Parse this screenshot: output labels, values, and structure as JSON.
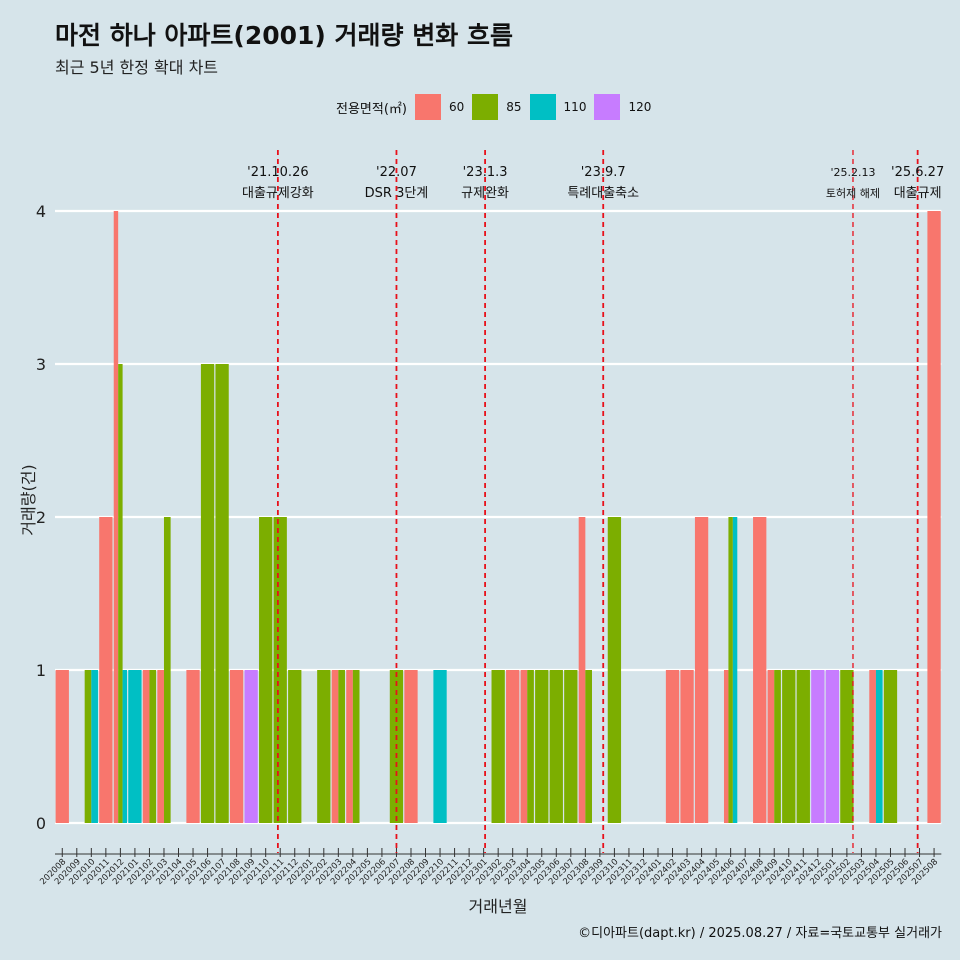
{
  "title": "마전 하나 아파트(2001) 거래량 변화 흐름",
  "subtitle": "최근 5년 한정 확대 차트",
  "caption": "©디아파트(dapt.kr) / 2025.08.27 / 자료=국토교통부 실거래가",
  "legend": {
    "title": "전용면적(㎡)",
    "items": [
      {
        "label": "60",
        "color": "#f8766d"
      },
      {
        "label": "85",
        "color": "#7cae00"
      },
      {
        "label": "110",
        "color": "#00bfc4"
      },
      {
        "label": "120",
        "color": "#c77cff"
      }
    ]
  },
  "chart_data": {
    "type": "bar",
    "xlabel": "거래년월",
    "ylabel": "거래량(건)",
    "ylim": [
      0,
      4
    ],
    "yticks": [
      "0",
      "1",
      "2",
      "3",
      "4"
    ],
    "categories": [
      "202008",
      "202009",
      "202010",
      "202011",
      "202012",
      "202101",
      "202102",
      "202103",
      "202104",
      "202105",
      "202106",
      "202107",
      "202108",
      "202109",
      "202110",
      "202111",
      "202112",
      "202201",
      "202202",
      "202203",
      "202204",
      "202205",
      "202206",
      "202207",
      "202208",
      "202209",
      "202210",
      "202211",
      "202212",
      "202301",
      "202302",
      "202303",
      "202304",
      "202305",
      "202306",
      "202307",
      "202308",
      "202309",
      "202310",
      "202311",
      "202312",
      "202401",
      "202402",
      "202403",
      "202404",
      "202405",
      "202406",
      "202407",
      "202408",
      "202409",
      "202410",
      "202411",
      "202412",
      "202501",
      "202502",
      "202503",
      "202504",
      "202505",
      "202506",
      "202507",
      "202508"
    ],
    "series": [
      {
        "name": "60",
        "color": "#f8766d",
        "values": [
          1,
          0,
          0,
          2,
          4,
          0,
          1,
          1,
          0,
          1,
          0,
          0,
          1,
          0,
          0,
          0,
          0,
          0,
          0,
          1,
          1,
          0,
          0,
          0,
          1,
          0,
          0,
          0,
          0,
          0,
          0,
          1,
          1,
          0,
          0,
          0,
          2,
          0,
          0,
          0,
          0,
          0,
          1,
          1,
          2,
          0,
          1,
          0,
          2,
          1,
          0,
          0,
          0,
          0,
          0,
          0,
          1,
          0,
          0,
          0,
          4
        ]
      },
      {
        "name": "85",
        "color": "#7cae00",
        "values": [
          0,
          0,
          1,
          0,
          3,
          0,
          1,
          2,
          0,
          0,
          3,
          3,
          0,
          0,
          2,
          2,
          1,
          0,
          1,
          1,
          1,
          0,
          0,
          1,
          0,
          0,
          0,
          0,
          0,
          0,
          1,
          0,
          1,
          1,
          1,
          1,
          1,
          0,
          2,
          0,
          0,
          0,
          0,
          0,
          0,
          0,
          2,
          0,
          0,
          1,
          1,
          1,
          0,
          0,
          1,
          0,
          0,
          1,
          0,
          0,
          0
        ]
      },
      {
        "name": "110",
        "color": "#00bfc4",
        "values": [
          0,
          0,
          1,
          0,
          1,
          1,
          0,
          0,
          0,
          0,
          0,
          0,
          0,
          0,
          0,
          0,
          0,
          0,
          0,
          0,
          0,
          0,
          0,
          0,
          0,
          0,
          1,
          0,
          0,
          0,
          0,
          0,
          0,
          0,
          0,
          0,
          0,
          0,
          0,
          0,
          0,
          0,
          0,
          0,
          0,
          0,
          2,
          0,
          0,
          0,
          0,
          0,
          0,
          0,
          0,
          0,
          1,
          0,
          0,
          0,
          0
        ]
      },
      {
        "name": "120",
        "color": "#c77cff",
        "values": [
          0,
          0,
          0,
          0,
          0,
          0,
          0,
          0,
          0,
          0,
          0,
          0,
          0,
          1,
          0,
          0,
          0,
          0,
          0,
          0,
          0,
          0,
          0,
          0,
          0,
          0,
          0,
          0,
          0,
          0,
          0,
          0,
          0,
          0,
          0,
          0,
          0,
          0,
          0,
          0,
          0,
          0,
          0,
          0,
          0,
          0,
          0,
          0,
          0,
          0,
          0,
          0,
          1,
          1,
          0,
          0,
          0,
          0,
          0,
          0,
          0
        ]
      }
    ],
    "events": [
      {
        "date": "'21.10.26",
        "label": "대출규제강화",
        "at": "202110",
        "offset": 0.84
      },
      {
        "date": "'22.07",
        "label": "DSR 3단계",
        "at": "202207",
        "offset": 0.0
      },
      {
        "date": "'23.1.3",
        "label": "규제완화",
        "at": "202301",
        "offset": 0.1
      },
      {
        "date": "'23.9.7",
        "label": "특례대출축소",
        "at": "202309",
        "offset": 0.23
      },
      {
        "date": "'25.2.13",
        "label": "토허제 해제",
        "at": "202502",
        "offset": 0.42
      },
      {
        "date": "'25.6.27",
        "label": "대출규제",
        "at": "202506",
        "offset": 0.87
      }
    ],
    "grid": true,
    "legend_position": "top"
  }
}
